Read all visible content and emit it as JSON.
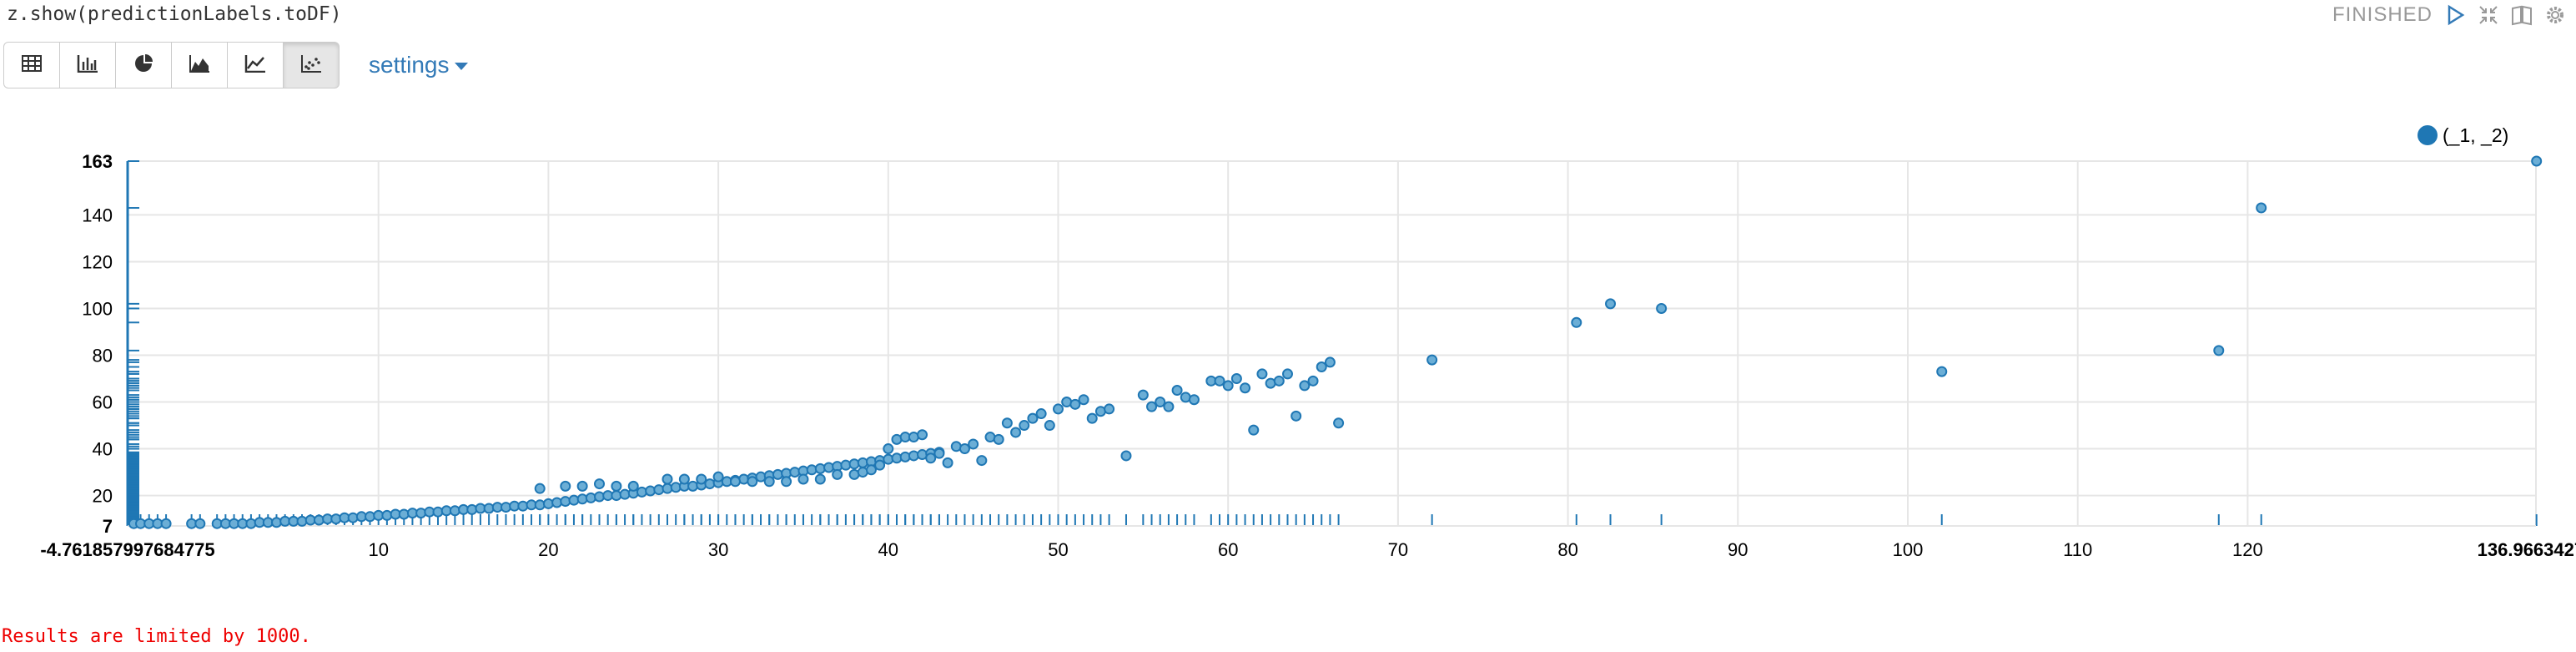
{
  "paragraph": {
    "code": "z.show(predictionLabels.toDF)",
    "status": "FINISHED"
  },
  "toolbar": {
    "buttons": [
      {
        "icon": "table-icon"
      },
      {
        "icon": "bar-chart-icon"
      },
      {
        "icon": "pie-chart-icon"
      },
      {
        "icon": "area-chart-icon"
      },
      {
        "icon": "line-chart-icon"
      },
      {
        "icon": "scatter-chart-icon",
        "active": true
      }
    ],
    "settings_label": "settings"
  },
  "result_note": "Results are limited by 1000.",
  "colors": {
    "series": "#1f77b4",
    "point_fill": "#6baed6",
    "grid": "#e6e6e6",
    "link": "#337ab7",
    "note": "#ff0000"
  },
  "chart_data": {
    "type": "scatter",
    "legend": {
      "position": "top-right",
      "entries": [
        "(_1, _2)"
      ]
    },
    "xlim": [
      -4.761857997684775,
      136.96634273
    ],
    "ylim": [
      7,
      163
    ],
    "x_min_label": "-4.761857997684775",
    "x_max_label": "136.96634273",
    "y_min_label": "7",
    "y_max_label": "163",
    "x_ticks": [
      10,
      20,
      30,
      40,
      50,
      60,
      70,
      80,
      90,
      100,
      110,
      120
    ],
    "y_ticks": [
      20,
      40,
      60,
      80,
      100,
      120,
      140
    ],
    "grid": true,
    "series": [
      {
        "name": "(_1, _2)",
        "points": [
          [
            -4.4,
            8
          ],
          [
            -4.0,
            8
          ],
          [
            -3.5,
            8
          ],
          [
            -3.0,
            8
          ],
          [
            -2.5,
            8
          ],
          [
            -1.0,
            8
          ],
          [
            -0.5,
            8
          ],
          [
            0.5,
            8
          ],
          [
            1.0,
            8
          ],
          [
            1.5,
            8
          ],
          [
            2.0,
            8
          ],
          [
            2.5,
            8
          ],
          [
            3.0,
            8.5
          ],
          [
            3.5,
            8.5
          ],
          [
            4.0,
            8.5
          ],
          [
            4.5,
            9
          ],
          [
            5.0,
            9
          ],
          [
            5.5,
            9
          ],
          [
            6.0,
            9.5
          ],
          [
            6.5,
            9.5
          ],
          [
            7.0,
            10
          ],
          [
            7.5,
            10
          ],
          [
            8.0,
            10.5
          ],
          [
            8.5,
            10.5
          ],
          [
            9.0,
            11
          ],
          [
            9.5,
            11
          ],
          [
            10.0,
            11.5
          ],
          [
            10.5,
            11.5
          ],
          [
            11.0,
            12
          ],
          [
            11.5,
            12
          ],
          [
            12.0,
            12.5
          ],
          [
            12.5,
            12.5
          ],
          [
            13.0,
            13
          ],
          [
            13.5,
            13
          ],
          [
            14.0,
            13.5
          ],
          [
            14.5,
            13.5
          ],
          [
            15.0,
            14
          ],
          [
            15.5,
            14
          ],
          [
            16.0,
            14.5
          ],
          [
            16.5,
            14.5
          ],
          [
            17.0,
            15
          ],
          [
            17.5,
            15
          ],
          [
            18.0,
            15.5
          ],
          [
            18.5,
            15.5
          ],
          [
            19.0,
            16
          ],
          [
            19.5,
            16
          ],
          [
            20.0,
            16.5
          ],
          [
            20.5,
            17
          ],
          [
            21.0,
            17.5
          ],
          [
            21.5,
            18
          ],
          [
            22.0,
            18.5
          ],
          [
            22.5,
            19
          ],
          [
            23.0,
            19.5
          ],
          [
            23.5,
            20
          ],
          [
            24.0,
            20
          ],
          [
            24.5,
            20.5
          ],
          [
            25.0,
            21
          ],
          [
            25.5,
            21.5
          ],
          [
            26.0,
            22
          ],
          [
            26.5,
            22.5
          ],
          [
            27.0,
            23
          ],
          [
            27.5,
            23.5
          ],
          [
            28.0,
            24
          ],
          [
            28.5,
            24
          ],
          [
            29.0,
            24.5
          ],
          [
            29.5,
            25
          ],
          [
            30.0,
            25.5
          ],
          [
            30.5,
            26
          ],
          [
            31.0,
            26.5
          ],
          [
            31.5,
            27
          ],
          [
            32.0,
            27.5
          ],
          [
            32.5,
            28
          ],
          [
            33.0,
            28.5
          ],
          [
            33.5,
            29
          ],
          [
            34.0,
            29.5
          ],
          [
            34.5,
            30
          ],
          [
            35.0,
            30.5
          ],
          [
            35.5,
            31
          ],
          [
            36.0,
            31.5
          ],
          [
            36.5,
            32
          ],
          [
            37.0,
            32.5
          ],
          [
            37.5,
            33
          ],
          [
            38.0,
            33.5
          ],
          [
            38.5,
            34
          ],
          [
            39.0,
            34.5
          ],
          [
            39.5,
            35
          ],
          [
            40.0,
            35.5
          ],
          [
            40.5,
            36
          ],
          [
            41.0,
            36.5
          ],
          [
            41.5,
            37
          ],
          [
            42.0,
            37.5
          ],
          [
            42.5,
            38
          ],
          [
            43.0,
            38.5
          ],
          [
            19.5,
            23
          ],
          [
            21,
            24
          ],
          [
            22,
            24
          ],
          [
            23,
            25
          ],
          [
            24,
            24
          ],
          [
            25,
            24
          ],
          [
            27,
            27
          ],
          [
            28,
            27
          ],
          [
            29,
            27
          ],
          [
            30,
            28
          ],
          [
            31,
            26
          ],
          [
            32,
            26
          ],
          [
            33,
            26
          ],
          [
            34,
            26
          ],
          [
            35,
            27
          ],
          [
            36,
            27
          ],
          [
            37,
            29
          ],
          [
            38,
            29
          ],
          [
            38.5,
            30
          ],
          [
            39,
            31
          ],
          [
            39.5,
            33
          ],
          [
            40,
            40
          ],
          [
            40.5,
            44
          ],
          [
            41,
            45
          ],
          [
            41.5,
            45
          ],
          [
            42,
            46
          ],
          [
            42.5,
            36
          ],
          [
            43,
            38
          ],
          [
            43.5,
            34
          ],
          [
            44,
            41
          ],
          [
            44.5,
            40
          ],
          [
            45,
            42
          ],
          [
            45.5,
            35
          ],
          [
            46,
            45
          ],
          [
            46.5,
            44
          ],
          [
            47,
            51
          ],
          [
            47.5,
            47
          ],
          [
            48,
            50
          ],
          [
            48.5,
            53
          ],
          [
            49,
            55
          ],
          [
            49.5,
            50
          ],
          [
            50,
            57
          ],
          [
            50.5,
            60
          ],
          [
            51,
            59
          ],
          [
            51.5,
            61
          ],
          [
            52,
            53
          ],
          [
            52.5,
            56
          ],
          [
            53,
            57
          ],
          [
            54,
            37
          ],
          [
            55,
            63
          ],
          [
            55.5,
            58
          ],
          [
            56,
            60
          ],
          [
            56.5,
            58
          ],
          [
            57,
            65
          ],
          [
            57.5,
            62
          ],
          [
            58,
            61
          ],
          [
            59,
            69
          ],
          [
            59.5,
            69
          ],
          [
            60,
            67
          ],
          [
            60.5,
            70
          ],
          [
            61,
            66
          ],
          [
            61.5,
            48
          ],
          [
            62,
            72
          ],
          [
            62.5,
            68
          ],
          [
            63,
            69
          ],
          [
            63.5,
            72
          ],
          [
            64,
            54
          ],
          [
            64.5,
            67
          ],
          [
            65,
            69
          ],
          [
            65.5,
            75
          ],
          [
            66,
            77
          ],
          [
            66.5,
            51
          ],
          [
            72,
            78
          ],
          [
            80.5,
            94
          ],
          [
            82.5,
            102
          ],
          [
            85.5,
            100
          ],
          [
            102,
            73
          ],
          [
            118.3,
            82
          ],
          [
            120.8,
            143
          ],
          [
            137.0,
            163
          ]
        ]
      }
    ]
  }
}
